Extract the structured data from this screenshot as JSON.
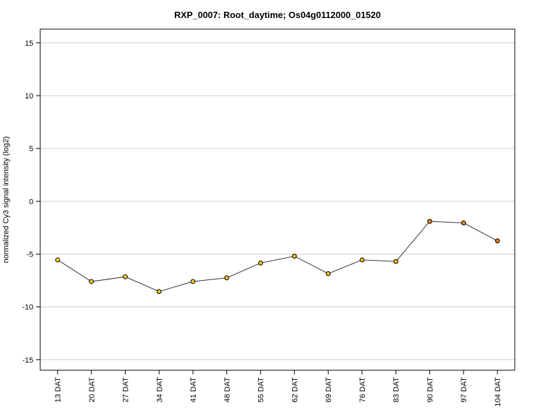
{
  "chart_data": {
    "type": "line",
    "title": "RXP_0007: Root_daytime; Os04g0112000_01520",
    "ylabel": "normalized Cy3 signal intensity (log2)",
    "xlabel": "",
    "categories": [
      "13 DAT",
      "20 DAT",
      "27 DAT",
      "34 DAT",
      "41 DAT",
      "48 DAT",
      "55 DAT",
      "62 DAT",
      "69 DAT",
      "76 DAT",
      "83 DAT",
      "90 DAT",
      "97 DAT",
      "104 DAT"
    ],
    "values": [
      -5.55,
      -7.6,
      -7.15,
      -8.55,
      -7.6,
      -7.25,
      -5.85,
      -5.2,
      -6.85,
      -5.55,
      -5.7,
      -1.9,
      -2.05,
      -3.75
    ],
    "point_colors": [
      "#f2d21b",
      "#f2c818",
      "#f2cb1a",
      "#e8c51a",
      "#eec71a",
      "#f0c51a",
      "#f0c01a",
      "#f0b81a",
      "#f0c21a",
      "#f0ba1a",
      "#f0b81a",
      "#e8841a",
      "#e8861a",
      "#e0781a"
    ],
    "ylim": [
      -16,
      16.3
    ],
    "yticks": [
      -15,
      -10,
      -5,
      0,
      5,
      10,
      15
    ],
    "grid": true,
    "legend": "none"
  }
}
